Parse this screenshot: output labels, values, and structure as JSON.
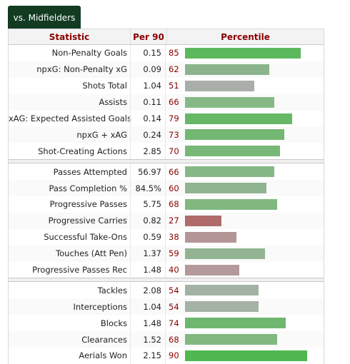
{
  "tab": {
    "label": "vs. Midfielders"
  },
  "header": {
    "statistic": "Statistic",
    "per90": "Per 90",
    "percentile": "Percentile"
  },
  "groups": [
    [
      {
        "stat": "Non-Penalty Goals",
        "per90": "0.15",
        "pct": 85,
        "color": "#5cb85c"
      },
      {
        "stat": "npxG: Non-Penalty xG",
        "per90": "0.09",
        "pct": 62,
        "color": "#8cb48c"
      },
      {
        "stat": "Shots Total",
        "per90": "1.04",
        "pct": 51,
        "color": "#a9aea9"
      },
      {
        "stat": "Assists",
        "per90": "0.11",
        "pct": 66,
        "color": "#86b886"
      },
      {
        "stat": "xAG: Expected Assisted Goals",
        "per90": "0.14",
        "pct": 79,
        "color": "#66b766"
      },
      {
        "stat": "npxG + xAG",
        "per90": "0.24",
        "pct": 73,
        "color": "#72b772"
      },
      {
        "stat": "Shot-Creating Actions",
        "per90": "2.85",
        "pct": 70,
        "color": "#78b778"
      }
    ],
    [
      {
        "stat": "Passes Attempted",
        "per90": "56.97",
        "pct": 66,
        "color": "#86b886"
      },
      {
        "stat": "Pass Completion %",
        "per90": "84.5%",
        "pct": 60,
        "color": "#90b490"
      },
      {
        "stat": "Progressive Passes",
        "per90": "5.75",
        "pct": 68,
        "color": "#80b880"
      },
      {
        "stat": "Progressive Carries",
        "per90": "0.82",
        "pct": 27,
        "color": "#b06b6b"
      },
      {
        "stat": "Successful Take-Ons",
        "per90": "0.59",
        "pct": 38,
        "color": "#b49595"
      },
      {
        "stat": "Touches (Att Pen)",
        "per90": "1.37",
        "pct": 59,
        "color": "#92b492"
      },
      {
        "stat": "Progressive Passes Rec",
        "per90": "1.48",
        "pct": 40,
        "color": "#b39999"
      }
    ],
    [
      {
        "stat": "Tackles",
        "per90": "2.08",
        "pct": 54,
        "color": "#a3b2a3"
      },
      {
        "stat": "Interceptions",
        "per90": "1.04",
        "pct": 54,
        "color": "#a3b2a3"
      },
      {
        "stat": "Blocks",
        "per90": "1.48",
        "pct": 74,
        "color": "#6fb76f"
      },
      {
        "stat": "Clearances",
        "per90": "1.52",
        "pct": 68,
        "color": "#80b880"
      },
      {
        "stat": "Aerials Won",
        "per90": "2.15",
        "pct": 90,
        "color": "#4fb84f"
      }
    ]
  ]
}
